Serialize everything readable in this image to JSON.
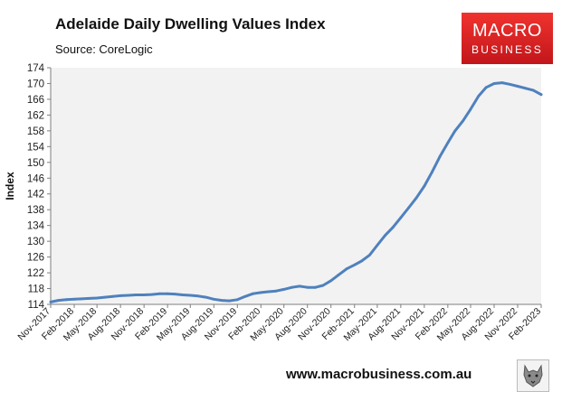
{
  "header": {
    "title": "Adelaide Daily Dwelling Values Index",
    "subtitle": "Source: CoreLogic"
  },
  "logo": {
    "line1": "MACRO",
    "line2": "BUSINESS"
  },
  "footer": {
    "url": "www.macrobusiness.com.au"
  },
  "colors": {
    "series": "#4f81bd",
    "plot_bg": "#f2f2f2",
    "logo_red": "#e0282a"
  },
  "chart_data": {
    "type": "line",
    "title": "Adelaide Daily Dwelling Values Index",
    "subtitle": "Source: CoreLogic",
    "xlabel": "",
    "ylabel": "Index",
    "ylim": [
      114,
      174
    ],
    "yticks": [
      114,
      118,
      122,
      126,
      130,
      134,
      138,
      142,
      146,
      150,
      154,
      158,
      162,
      166,
      170,
      174
    ],
    "xlim": [
      "2017-11-01",
      "2023-02-01"
    ],
    "xticks": [
      "2017-11-01",
      "2018-02-01",
      "2018-05-01",
      "2018-08-01",
      "2018-11-01",
      "2019-02-01",
      "2019-05-01",
      "2019-08-01",
      "2019-11-01",
      "2020-02-01",
      "2020-05-01",
      "2020-08-01",
      "2020-11-01",
      "2021-02-01",
      "2021-05-01",
      "2021-08-01",
      "2021-11-01",
      "2022-02-01",
      "2022-05-01",
      "2022-08-01",
      "2022-11-01",
      "2023-02-01"
    ],
    "xtick_labels": [
      "Nov-2017",
      "Feb-2018",
      "May-2018",
      "Aug-2018",
      "Nov-2018",
      "Feb-2019",
      "May-2019",
      "Aug-2019",
      "Nov-2019",
      "Feb-2020",
      "May-2020",
      "Aug-2020",
      "Nov-2020",
      "Feb-2021",
      "May-2021",
      "Aug-2021",
      "Nov-2021",
      "Feb-2022",
      "May-2022",
      "Aug-2022",
      "Nov-2022",
      "Feb-2023"
    ],
    "grid": false,
    "legend": "none",
    "series": [
      {
        "values": [
          [
            "2017-11-01",
            114.6
          ],
          [
            "2017-12-01",
            115.0
          ],
          [
            "2018-01-01",
            115.2
          ],
          [
            "2018-02-01",
            115.3
          ],
          [
            "2018-03-01",
            115.4
          ],
          [
            "2018-04-01",
            115.5
          ],
          [
            "2018-05-01",
            115.6
          ],
          [
            "2018-06-01",
            115.8
          ],
          [
            "2018-07-01",
            116.0
          ],
          [
            "2018-08-01",
            116.2
          ],
          [
            "2018-09-01",
            116.3
          ],
          [
            "2018-10-01",
            116.4
          ],
          [
            "2018-11-01",
            116.4
          ],
          [
            "2018-12-01",
            116.5
          ],
          [
            "2019-01-01",
            116.7
          ],
          [
            "2019-02-01",
            116.7
          ],
          [
            "2019-03-01",
            116.6
          ],
          [
            "2019-04-01",
            116.4
          ],
          [
            "2019-05-01",
            116.3
          ],
          [
            "2019-06-01",
            116.1
          ],
          [
            "2019-07-01",
            115.8
          ],
          [
            "2019-08-01",
            115.3
          ],
          [
            "2019-09-01",
            115.0
          ],
          [
            "2019-10-01",
            114.9
          ],
          [
            "2019-11-01",
            115.2
          ],
          [
            "2019-12-01",
            116.0
          ],
          [
            "2020-01-01",
            116.7
          ],
          [
            "2020-02-01",
            117.0
          ],
          [
            "2020-03-01",
            117.2
          ],
          [
            "2020-04-01",
            117.4
          ],
          [
            "2020-05-01",
            117.8
          ],
          [
            "2020-06-01",
            118.3
          ],
          [
            "2020-07-01",
            118.6
          ],
          [
            "2020-08-01",
            118.3
          ],
          [
            "2020-09-01",
            118.3
          ],
          [
            "2020-10-01",
            118.8
          ],
          [
            "2020-11-01",
            120.0
          ],
          [
            "2020-12-01",
            121.5
          ],
          [
            "2021-01-01",
            123.0
          ],
          [
            "2021-02-01",
            124.0
          ],
          [
            "2021-03-01",
            125.0
          ],
          [
            "2021-04-01",
            126.5
          ],
          [
            "2021-05-01",
            129.0
          ],
          [
            "2021-06-01",
            131.5
          ],
          [
            "2021-07-01",
            133.5
          ],
          [
            "2021-08-01",
            136.0
          ],
          [
            "2021-09-01",
            138.5
          ],
          [
            "2021-10-01",
            141.0
          ],
          [
            "2021-11-01",
            144.0
          ],
          [
            "2021-12-01",
            147.5
          ],
          [
            "2022-01-01",
            151.5
          ],
          [
            "2022-02-01",
            155.0
          ],
          [
            "2022-03-01",
            158.0
          ],
          [
            "2022-04-01",
            160.5
          ],
          [
            "2022-05-01",
            163.5
          ],
          [
            "2022-06-01",
            166.8
          ],
          [
            "2022-07-01",
            169.0
          ],
          [
            "2022-08-01",
            170.0
          ],
          [
            "2022-09-01",
            170.2
          ],
          [
            "2022-10-01",
            169.8
          ],
          [
            "2022-11-01",
            169.3
          ],
          [
            "2022-12-01",
            168.8
          ],
          [
            "2023-01-01",
            168.3
          ],
          [
            "2023-02-01",
            167.2
          ]
        ]
      }
    ]
  }
}
